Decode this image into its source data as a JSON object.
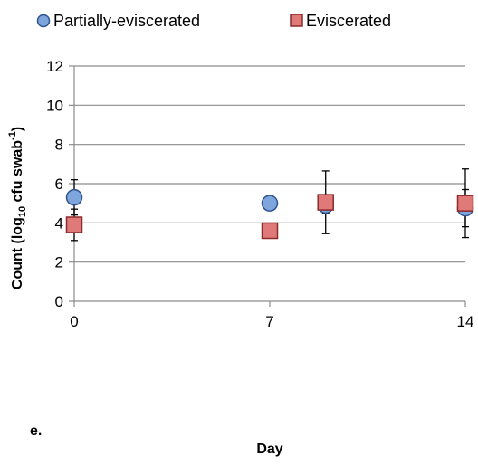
{
  "panel_label": "e.",
  "chart_data": {
    "type": "scatter",
    "xlabel": "Day",
    "ylabel": "Count (log₁₀ cfu swab⁻¹)",
    "ylabel_parts": {
      "main": "Count (log",
      "sub": "10",
      "mid": " cfu swab",
      "sup": "-1",
      "end": ")"
    },
    "xlim": [
      0,
      14
    ],
    "ylim": [
      0,
      12
    ],
    "x_ticks": [
      0,
      7,
      14
    ],
    "y_ticks": [
      0,
      2,
      4,
      6,
      8,
      10,
      12
    ],
    "grid": "horizontal",
    "legend_position": "top",
    "series": [
      {
        "name": "Partially-eviscerated",
        "marker": "circle",
        "color": "#7fa6dc",
        "stroke": "#2f528f",
        "points": [
          {
            "x": 0,
            "y": 5.3,
            "err": 0.9
          },
          {
            "x": 7,
            "y": 5.0,
            "err": 0.3
          },
          {
            "x": 9,
            "y": 4.9,
            "err": 0.4
          },
          {
            "x": 14,
            "y": 4.75,
            "err": 0.95
          }
        ]
      },
      {
        "name": "Eviscerated",
        "marker": "square",
        "color": "#e07a78",
        "stroke": "#8b2a2a",
        "points": [
          {
            "x": 0,
            "y": 3.9,
            "err": 0.8
          },
          {
            "x": 7,
            "y": 3.6,
            "err": 0
          },
          {
            "x": 9,
            "y": 5.05,
            "err": 1.6
          },
          {
            "x": 14,
            "y": 5.0,
            "err": 1.75
          }
        ]
      }
    ]
  }
}
